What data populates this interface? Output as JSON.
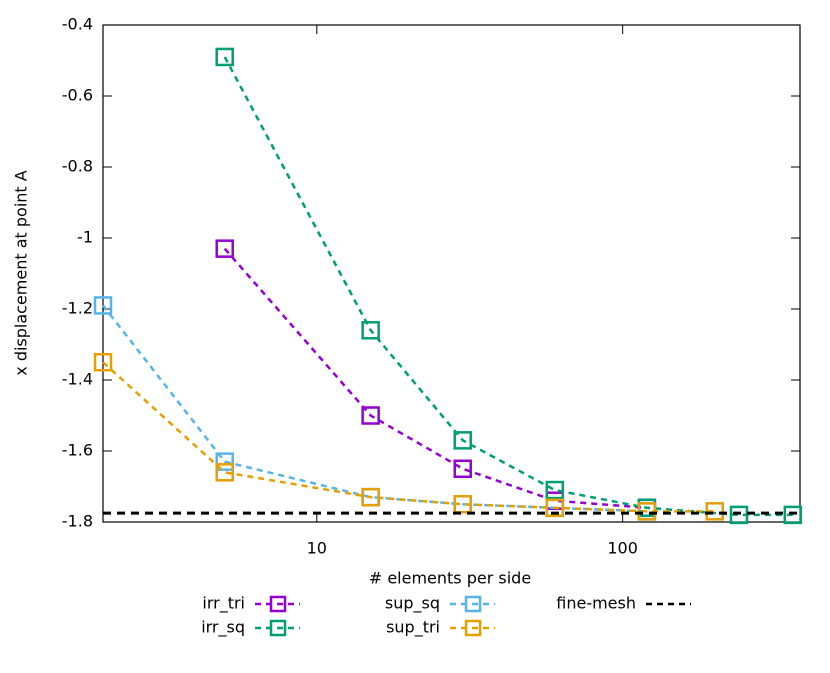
{
  "chart_data": {
    "type": "line",
    "xlabel": "# elements per side",
    "ylabel": "x displacement at point A",
    "xscale": "log",
    "xlim": [
      2,
      380
    ],
    "xticks": [
      10,
      100
    ],
    "ylim": [
      -1.8,
      -0.4
    ],
    "yticks": [
      -0.4,
      -0.6,
      -0.8,
      -1,
      -1.2,
      -1.4,
      -1.6,
      -1.8
    ],
    "series": [
      {
        "name": "irr_tri",
        "color": "#9400d3",
        "x": [
          5,
          15,
          30,
          60,
          120
        ],
        "values": [
          -1.03,
          -1.5,
          -1.65,
          -1.74,
          -1.76
        ]
      },
      {
        "name": "irr_sq",
        "color": "#009e73",
        "x": [
          5,
          15,
          30,
          60,
          120,
          240,
          360
        ],
        "values": [
          -0.49,
          -1.26,
          -1.57,
          -1.71,
          -1.76,
          -1.78,
          -1.78
        ]
      },
      {
        "name": "sup_sq",
        "color": "#56b4e9",
        "x": [
          2,
          5,
          15,
          30,
          60,
          120
        ],
        "values": [
          -1.19,
          -1.63,
          -1.73,
          -1.75,
          -1.76,
          -1.77
        ]
      },
      {
        "name": "sup_tri",
        "color": "#e69f00",
        "x": [
          2,
          5,
          15,
          30,
          60,
          120,
          200
        ],
        "values": [
          -1.35,
          -1.66,
          -1.73,
          -1.75,
          -1.76,
          -1.77,
          -1.77
        ]
      }
    ],
    "reference_line": {
      "name": "fine-mesh",
      "color": "#000000",
      "value": -1.775
    }
  }
}
